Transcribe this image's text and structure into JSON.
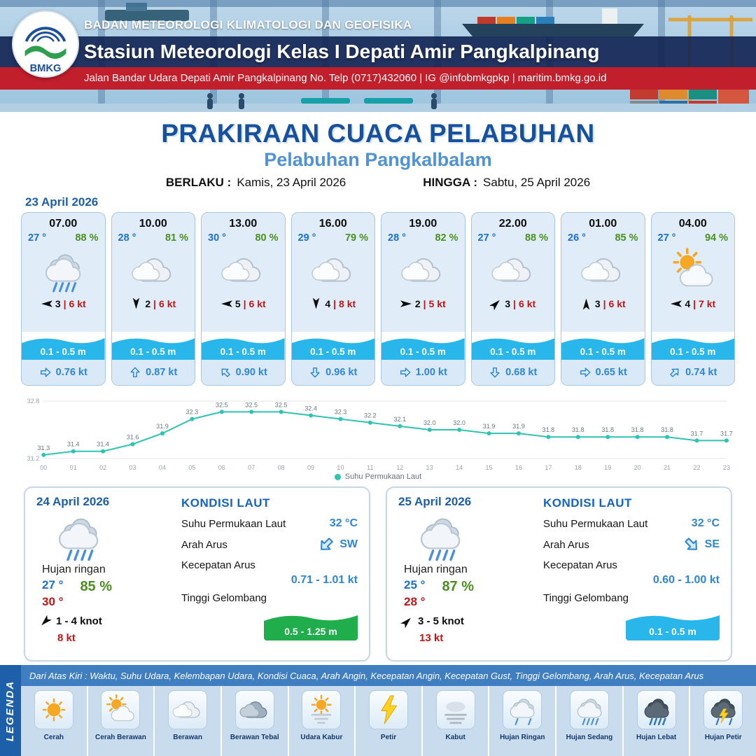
{
  "header": {
    "logo_text": "BMKG",
    "agency": "BADAN METEOROLOGI KLIMATOLOGI DAN GEOFISIKA",
    "station": "Stasiun Meteorologi Kelas I Depati Amir Pangkalpinang",
    "address": "Jalan Bandar Udara Depati Amir Pangkalpinang No. Telp (0717)432060 | IG @infobmkgpkp | maritim.bmkg.go.id"
  },
  "title": {
    "main": "PRAKIRAAN CUACA PELABUHAN",
    "subtitle": "Pelabuhan Pangkalbalam",
    "berlaku_label": "BERLAKU :",
    "berlaku_value": "Kamis, 23 April 2026",
    "hingga_label": "HINGGA :",
    "hingga_value": "Sabtu, 25 April 2026"
  },
  "ui": {
    "sep": "|"
  },
  "colors": {
    "accent_blue": "#1d5fa8",
    "wave_blue": "#29b6ea",
    "wave_green": "#1fae4b",
    "line_teal": "#2fc4b2",
    "gust_red": "#c01818",
    "temp_blue": "#1a6fd4",
    "humidity_green": "#4a9020"
  },
  "forecast": {
    "date": "23 April 2026",
    "cards": [
      {
        "time": "07.00",
        "temp": "27 °",
        "humidity": "88 %",
        "icon": "rain-medium",
        "wind": "3",
        "gust": "6 kt",
        "wave": "0.1 - 0.5 m",
        "current": "0.76 kt",
        "wind_deg": 180,
        "current_deg": 0
      },
      {
        "time": "10.00",
        "temp": "28 °",
        "humidity": "81 %",
        "icon": "cloud",
        "wind": "2",
        "gust": "6 kt",
        "wave": "0.1 - 0.5 m",
        "current": "0.87 kt",
        "wind_deg": 90,
        "current_deg": -90
      },
      {
        "time": "13.00",
        "temp": "30 °",
        "humidity": "80 %",
        "icon": "cloud",
        "wind": "5",
        "gust": "6 kt",
        "wave": "0.1 - 0.5 m",
        "current": "0.90 kt",
        "wind_deg": 180,
        "current_deg": -135
      },
      {
        "time": "16.00",
        "temp": "29 °",
        "humidity": "79 %",
        "icon": "cloud",
        "wind": "4",
        "gust": "8 kt",
        "wave": "0.1 - 0.5 m",
        "current": "0.96 kt",
        "wind_deg": 90,
        "current_deg": 90
      },
      {
        "time": "19.00",
        "temp": "28 °",
        "humidity": "82 %",
        "icon": "cloud",
        "wind": "2",
        "gust": "5 kt",
        "wave": "0.1 - 0.5 m",
        "current": "1.00 kt",
        "wind_deg": 0,
        "current_deg": 0
      },
      {
        "time": "22.00",
        "temp": "27 °",
        "humidity": "88 %",
        "icon": "cloud",
        "wind": "3",
        "gust": "6 kt",
        "wave": "0.1 - 0.5 m",
        "current": "0.68 kt",
        "wind_deg": -45,
        "current_deg": 90
      },
      {
        "time": "01.00",
        "temp": "26 °",
        "humidity": "85 %",
        "icon": "cloud",
        "wind": "3",
        "gust": "6 kt",
        "wave": "0.1 - 0.5 m",
        "current": "0.65 kt",
        "wind_deg": -90,
        "current_deg": 0
      },
      {
        "time": "04.00",
        "temp": "27 °",
        "humidity": "94 %",
        "icon": "sun-cloud",
        "wind": "4",
        "gust": "7 kt",
        "wave": "0.1 - 0.5 m",
        "current": "0.74 kt",
        "wind_deg": 180,
        "current_deg": -45
      }
    ]
  },
  "chart_data": {
    "type": "line",
    "title": "Suhu Permukaan Laut",
    "x": [
      "00",
      "01",
      "02",
      "03",
      "04",
      "05",
      "06",
      "07",
      "08",
      "09",
      "10",
      "11",
      "12",
      "13",
      "14",
      "15",
      "16",
      "17",
      "18",
      "19",
      "20",
      "21",
      "22",
      "23"
    ],
    "series": [
      {
        "name": "Suhu Permukaan Laut",
        "values": [
          31.3,
          31.4,
          31.4,
          31.6,
          31.9,
          32.3,
          32.5,
          32.5,
          32.5,
          32.4,
          32.3,
          32.2,
          32.1,
          32.0,
          32.0,
          31.9,
          31.9,
          31.8,
          31.8,
          31.8,
          31.8,
          31.8,
          31.7,
          31.7
        ]
      }
    ],
    "ylim": [
      31.2,
      32.8
    ],
    "yticks": [
      31.2,
      32.8
    ],
    "grid": true,
    "legend_position": "bottom",
    "line_color": "#2fc4b2"
  },
  "sea_labels": {
    "title": "KONDISI LAUT",
    "sst": "Suhu Permukaan Laut",
    "direction": "Arah Arus",
    "speed": "Kecepatan Arus",
    "wave": "Tinggi Gelombang"
  },
  "daily": [
    {
      "date": "24 April 2026",
      "icon": "rain-medium",
      "condition": "Hujan ringan",
      "temp_min": "27 °",
      "temp_max": "30 °",
      "humidity": "85 %",
      "wind_range": "1  - 4 knot",
      "gust": "8 kt",
      "wind_deg": 135,
      "sst": "32 °C",
      "current_dir": "SW",
      "current_deg": 135,
      "current_speed": "0.71  - 1.01 kt",
      "wave_height": "0.5 - 1.25 m",
      "wave_color": "#1fae4b"
    },
    {
      "date": "25 April 2026",
      "icon": "rain-medium",
      "condition": "Hujan ringan",
      "temp_min": "25 °",
      "temp_max": "28 °",
      "humidity": "87 %",
      "wind_range": "3  - 5 knot",
      "gust": "13 kt",
      "wind_deg": -45,
      "sst": "32 °C",
      "current_dir": "SE",
      "current_deg": 45,
      "current_speed": "0.60  - 1.00 kt",
      "wave_height": "0.1 - 0.5 m",
      "wave_color": "#29b6ea"
    }
  ],
  "legend": {
    "strip": "LEGENDA",
    "description": "Dari Atas Kiri : Waktu, Suhu Udara, Kelembapan Udara, Kondisi Cuaca, Arah Angin, Kecepatan Angin, Kecepatan Gust, Tinggi Gelombang, Arah Arus, Kecepatan Arus",
    "items": [
      {
        "label": "Cerah",
        "icon": "sun"
      },
      {
        "label": "Cerah Berawan",
        "icon": "sun-cloud"
      },
      {
        "label": "Berawan",
        "icon": "cloud"
      },
      {
        "label": "Berawan Tebal",
        "icon": "cloud-thick"
      },
      {
        "label": "Udara Kabur",
        "icon": "haze"
      },
      {
        "label": "Petir",
        "icon": "lightning"
      },
      {
        "label": "Kabut",
        "icon": "fog"
      },
      {
        "label": "Hujan Ringan",
        "icon": "rain-light"
      },
      {
        "label": "Hujan Sedang",
        "icon": "rain-medium"
      },
      {
        "label": "Hujan Lebat",
        "icon": "rain-heavy"
      },
      {
        "label": "Hujan Petir",
        "icon": "storm"
      }
    ]
  }
}
